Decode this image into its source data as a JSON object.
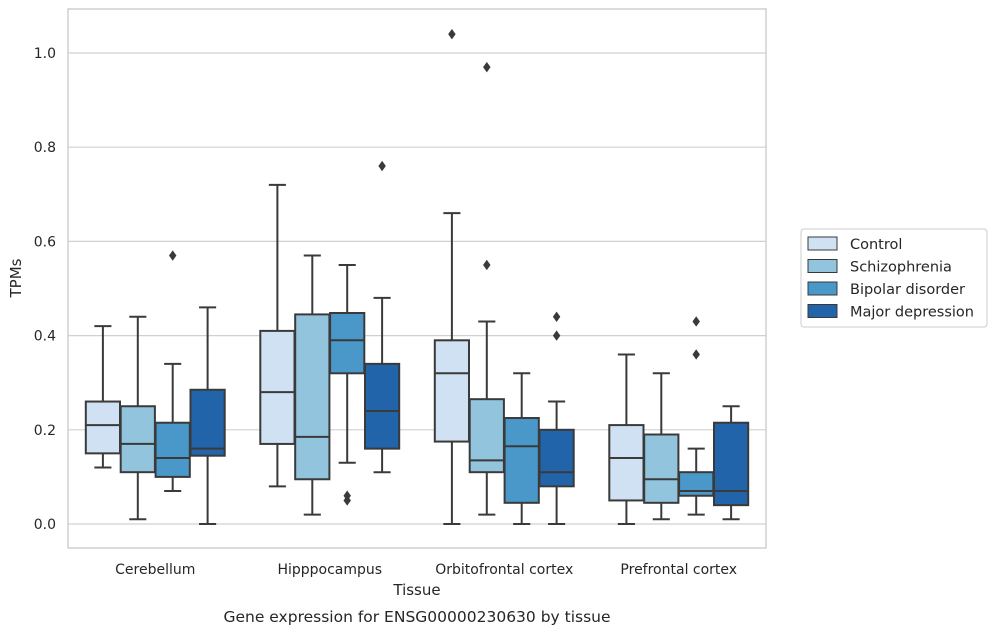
{
  "chart_data": {
    "type": "box",
    "title": "",
    "caption": "Gene expression for ENSG00000230630 by tissue",
    "xlabel": "Tissue",
    "ylabel": "TPMs",
    "ylim": [
      -0.05,
      1.09
    ],
    "yticks": [
      "0.0",
      "0.2",
      "0.4",
      "0.6",
      "0.8",
      "1.0"
    ],
    "grid": "horizontal",
    "legend_position": "right",
    "categories": [
      "Cerebellum",
      "Hipppocampus",
      "Orbitofrontal cortex",
      "Prefrontal cortex"
    ],
    "series": [
      {
        "name": "Control",
        "color": "#cfe1f2",
        "boxes": [
          {
            "whislo": 0.12,
            "q1": 0.15,
            "med": 0.21,
            "q3": 0.26,
            "whishi": 0.42,
            "fliers": []
          },
          {
            "whislo": 0.08,
            "q1": 0.17,
            "med": 0.28,
            "q3": 0.41,
            "whishi": 0.72,
            "fliers": []
          },
          {
            "whislo": 0.0,
            "q1": 0.175,
            "med": 0.32,
            "q3": 0.39,
            "whishi": 0.66,
            "fliers": [
              1.04
            ]
          },
          {
            "whislo": 0.0,
            "q1": 0.05,
            "med": 0.14,
            "q3": 0.21,
            "whishi": 0.36,
            "fliers": []
          }
        ]
      },
      {
        "name": "Schizophrenia",
        "color": "#93c4de",
        "boxes": [
          {
            "whislo": 0.01,
            "q1": 0.11,
            "med": 0.17,
            "q3": 0.25,
            "whishi": 0.44,
            "fliers": []
          },
          {
            "whislo": 0.02,
            "q1": 0.095,
            "med": 0.185,
            "q3": 0.445,
            "whishi": 0.57,
            "fliers": []
          },
          {
            "whislo": 0.02,
            "q1": 0.11,
            "med": 0.135,
            "q3": 0.265,
            "whishi": 0.43,
            "fliers": [
              0.55,
              0.97
            ]
          },
          {
            "whislo": 0.01,
            "q1": 0.045,
            "med": 0.095,
            "q3": 0.19,
            "whishi": 0.32,
            "fliers": []
          }
        ]
      },
      {
        "name": "Bipolar disorder",
        "color": "#4a98c9",
        "boxes": [
          {
            "whislo": 0.07,
            "q1": 0.1,
            "med": 0.14,
            "q3": 0.215,
            "whishi": 0.34,
            "fliers": [
              0.57
            ]
          },
          {
            "whislo": 0.13,
            "q1": 0.32,
            "med": 0.39,
            "q3": 0.448,
            "whishi": 0.55,
            "fliers": [
              0.05,
              0.06
            ]
          },
          {
            "whislo": 0.0,
            "q1": 0.045,
            "med": 0.165,
            "q3": 0.225,
            "whishi": 0.32,
            "fliers": []
          },
          {
            "whislo": 0.02,
            "q1": 0.06,
            "med": 0.07,
            "q3": 0.11,
            "whishi": 0.16,
            "fliers": [
              0.36,
              0.43
            ]
          }
        ]
      },
      {
        "name": "Major depression",
        "color": "#2164a9",
        "boxes": [
          {
            "whislo": 0.0,
            "q1": 0.145,
            "med": 0.16,
            "q3": 0.285,
            "whishi": 0.46,
            "fliers": []
          },
          {
            "whislo": 0.11,
            "q1": 0.16,
            "med": 0.24,
            "q3": 0.34,
            "whishi": 0.48,
            "fliers": [
              0.76
            ]
          },
          {
            "whislo": 0.0,
            "q1": 0.08,
            "med": 0.11,
            "q3": 0.2,
            "whishi": 0.26,
            "fliers": [
              0.4,
              0.44
            ]
          },
          {
            "whislo": 0.01,
            "q1": 0.04,
            "med": 0.07,
            "q3": 0.215,
            "whishi": 0.25,
            "fliers": []
          }
        ]
      }
    ]
  }
}
